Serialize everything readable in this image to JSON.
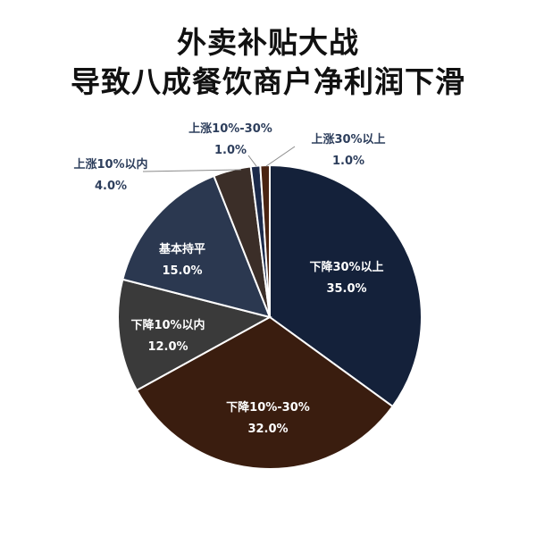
{
  "title_lines": [
    "外卖补贴大战",
    "导致八成餐饮商户净利润下滑"
  ],
  "chart_data": {
    "type": "pie",
    "title": "外卖补贴大战导致八成餐饮商户净利润下滑",
    "categories": [
      "下降30%以上",
      "下降10%-30%",
      "下降10%以内",
      "基本持平",
      "上涨10%以内",
      "上涨10%-30%",
      "上涨30%以上"
    ],
    "values": [
      35.0,
      32.0,
      12.0,
      15.0,
      4.0,
      1.0,
      1.0
    ],
    "value_labels": [
      "35.0%",
      "32.0%",
      "12.0%",
      "15.0%",
      "4.0%",
      "1.0%",
      "1.0%"
    ],
    "colors": [
      "#14213a",
      "#3a1d0f",
      "#3a3a3a",
      "#2b3850",
      "#3b2e28",
      "#1c2a4a",
      "#4a2412"
    ],
    "label_color_inside": "#ffffff",
    "label_color_outside": "#2d3e5c"
  }
}
